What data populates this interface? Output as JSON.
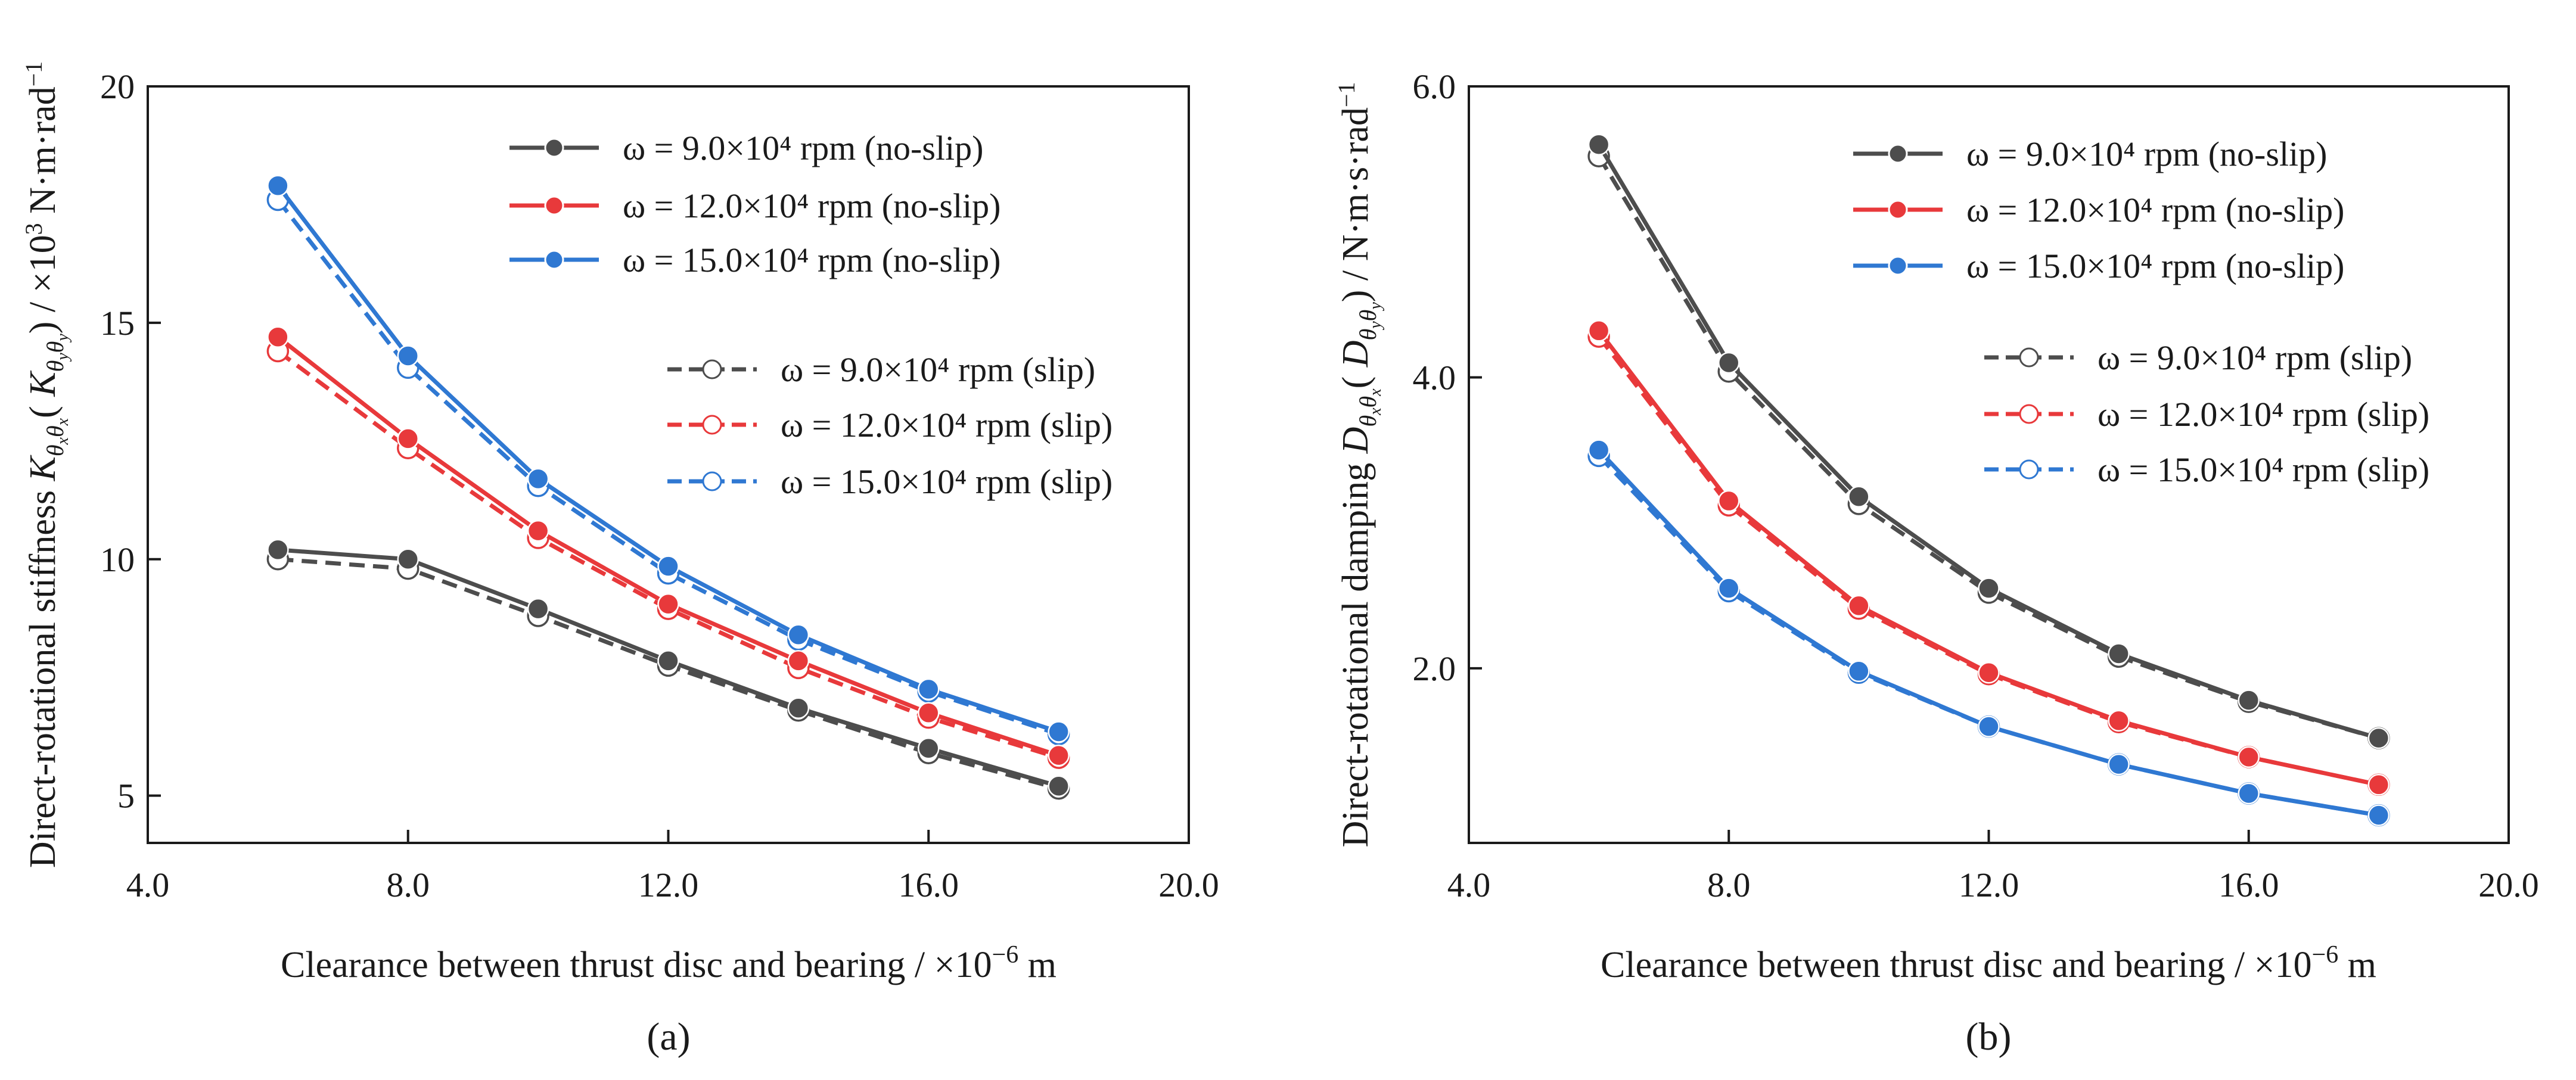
{
  "chart_data": [
    {
      "type": "line",
      "panel_label": "(a)",
      "xlabel": "Clearance between thrust disc and bearing / ×10⁻⁶ m",
      "ylabel": "Direct-rotational stiffness K_θxθx ( K_θyθy ) / ×10³ N·m·rad⁻¹",
      "x_ticks": [
        "4.0",
        "8.0",
        "12.0",
        "16.0",
        "20.0"
      ],
      "y_ticks": [
        "5",
        "10",
        "15",
        "20"
      ],
      "xlim": [
        4,
        20
      ],
      "ylim": [
        4,
        20
      ],
      "x": [
        6,
        8,
        10,
        12,
        14,
        16,
        18
      ],
      "legend_position": "top-right",
      "series": [
        {
          "name": "ω = 9.0×10⁴ rpm (no-slip)",
          "color": "#4d4d4d",
          "style": "solid",
          "marker": "filled",
          "values": [
            10.2,
            10.0,
            8.95,
            7.85,
            6.85,
            6.0,
            5.2
          ]
        },
        {
          "name": "ω = 12.0×10⁴ rpm (no-slip)",
          "color": "#e8393b",
          "style": "solid",
          "marker": "filled",
          "values": [
            14.7,
            12.55,
            10.6,
            9.05,
            7.85,
            6.75,
            5.85
          ]
        },
        {
          "name": "ω = 15.0×10⁴ rpm (no-slip)",
          "color": "#2f78d2",
          "style": "solid",
          "marker": "filled",
          "values": [
            17.9,
            14.3,
            11.7,
            9.85,
            8.4,
            7.25,
            6.35
          ]
        },
        {
          "name": "ω = 9.0×10⁴ rpm (slip)",
          "color": "#4d4d4d",
          "style": "dashed",
          "marker": "open",
          "values": [
            10.0,
            9.8,
            8.8,
            7.75,
            6.8,
            5.9,
            5.15
          ]
        },
        {
          "name": "ω = 12.0×10⁴ rpm (slip)",
          "color": "#e8393b",
          "style": "dashed",
          "marker": "open",
          "values": [
            14.4,
            12.35,
            10.45,
            8.95,
            7.7,
            6.65,
            5.8
          ]
        },
        {
          "name": "ω = 15.0×10⁴ rpm (slip)",
          "color": "#2f78d2",
          "style": "dashed",
          "marker": "open",
          "values": [
            17.6,
            14.05,
            11.55,
            9.7,
            8.3,
            7.2,
            6.3
          ]
        }
      ]
    },
    {
      "type": "line",
      "panel_label": "(b)",
      "xlabel": "Clearance between thrust disc and bearing / ×10⁻⁶ m",
      "ylabel": "Direct-rotational damping D_θxθx ( D_θyθy ) / N·m·s·rad⁻¹",
      "x_ticks": [
        "4.0",
        "8.0",
        "12.0",
        "16.0",
        "20.0"
      ],
      "y_ticks": [
        "2.0",
        "4.0",
        "6.0"
      ],
      "xlim": [
        4,
        20
      ],
      "ylim": [
        0.8,
        6.0
      ],
      "x": [
        6,
        8,
        10,
        12,
        14,
        16,
        18
      ],
      "legend_position": "top-right",
      "series": [
        {
          "name": "ω = 9.0×10⁴ rpm (no-slip)",
          "color": "#4d4d4d",
          "style": "solid",
          "marker": "filled",
          "values": [
            5.6,
            4.1,
            3.18,
            2.55,
            2.1,
            1.78,
            1.52
          ]
        },
        {
          "name": "ω = 12.0×10⁴ rpm (no-slip)",
          "color": "#e8393b",
          "style": "solid",
          "marker": "filled",
          "values": [
            4.32,
            3.15,
            2.43,
            1.97,
            1.64,
            1.39,
            1.2
          ]
        },
        {
          "name": "ω = 15.0×10⁴ rpm (no-slip)",
          "color": "#2f78d2",
          "style": "solid",
          "marker": "filled",
          "values": [
            3.5,
            2.55,
            1.98,
            1.6,
            1.34,
            1.14,
            0.99
          ]
        },
        {
          "name": "ω = 9.0×10⁴ rpm (slip)",
          "color": "#4d4d4d",
          "style": "dashed",
          "marker": "open",
          "values": [
            5.52,
            4.04,
            3.13,
            2.52,
            2.08,
            1.77,
            1.52
          ]
        },
        {
          "name": "ω = 12.0×10⁴ rpm (slip)",
          "color": "#e8393b",
          "style": "dashed",
          "marker": "open",
          "values": [
            4.28,
            3.12,
            2.41,
            1.96,
            1.63,
            1.39,
            1.2
          ]
        },
        {
          "name": "ω = 15.0×10⁴ rpm (slip)",
          "color": "#2f78d2",
          "style": "dashed",
          "marker": "open",
          "values": [
            3.46,
            2.53,
            1.97,
            1.6,
            1.34,
            1.14,
            0.99
          ]
        }
      ]
    }
  ]
}
